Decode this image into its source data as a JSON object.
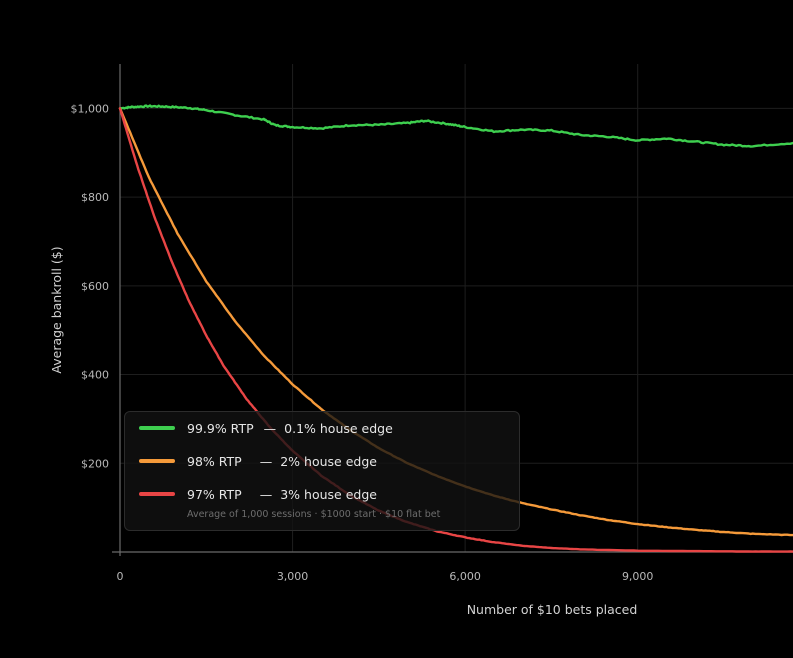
{
  "chart_data": {
    "type": "line",
    "xlabel": "Number of $10 bets placed",
    "ylabel": "Average bankroll ($)",
    "xlim": [
      0,
      11700
    ],
    "ylim": [
      0,
      1100
    ],
    "xticks": [
      0,
      3000,
      6000,
      9000
    ],
    "xtick_labels": [
      "0",
      "3,000",
      "6,000",
      "9,000"
    ],
    "yticks": [
      200,
      400,
      600,
      800,
      1000
    ],
    "ytick_labels": [
      "$200",
      "$400",
      "$600",
      "$800",
      "$1,000"
    ],
    "grid": true,
    "legend_position": "bottom-left",
    "series": [
      {
        "name": "99.9% RTP",
        "edge_label": "0.1% house edge",
        "color": "#3ecf4f",
        "x": [
          0,
          200,
          500,
          800,
          1200,
          1500,
          2000,
          2500,
          2700,
          3000,
          3500,
          4000,
          4500,
          5000,
          5300,
          5700,
          6000,
          6500,
          7000,
          7500,
          8000,
          8500,
          9000,
          9500,
          10000,
          10500,
          11000,
          11700
        ],
        "y": [
          1000,
          1003,
          1005,
          1004,
          1001,
          996,
          985,
          975,
          962,
          958,
          955,
          962,
          963,
          967,
          972,
          965,
          958,
          948,
          952,
          950,
          940,
          936,
          928,
          932,
          925,
          918,
          915,
          922
        ]
      },
      {
        "name": "98% RTP",
        "edge_label": "2% house edge",
        "color": "#f59a3a",
        "x": [
          0,
          500,
          1000,
          1500,
          2000,
          2500,
          3000,
          3500,
          4000,
          4500,
          5000,
          5500,
          6000,
          6500,
          7000,
          7500,
          8000,
          8500,
          9000,
          9500,
          10000,
          10500,
          11000,
          11700
        ],
        "y": [
          1000,
          845,
          718,
          610,
          520,
          443,
          378,
          322,
          275,
          234,
          200,
          172,
          148,
          127,
          110,
          96,
          83,
          72,
          63,
          56,
          50,
          45,
          41,
          38
        ]
      },
      {
        "name": "97% RTP",
        "edge_label": "3% house edge",
        "color": "#e84545",
        "x": [
          0,
          300,
          600,
          900,
          1200,
          1500,
          1800,
          2200,
          2600,
          3000,
          3500,
          4000,
          4500,
          5000,
          5500,
          6000,
          6500,
          7000,
          7500,
          8000,
          9000,
          10000,
          11000,
          11700
        ],
        "y": [
          1000,
          870,
          755,
          655,
          565,
          488,
          420,
          345,
          282,
          228,
          172,
          128,
          93,
          67,
          47,
          33,
          22,
          14,
          9,
          6,
          3,
          2,
          1,
          1
        ]
      }
    ],
    "annotation": "Average of 1,000 sessions · $1000 start · $10 flat bet"
  },
  "colors": {
    "background": "#000000",
    "grid": "#1e1e1e",
    "axis": "#6a6a6a",
    "legend_dash": "—"
  }
}
